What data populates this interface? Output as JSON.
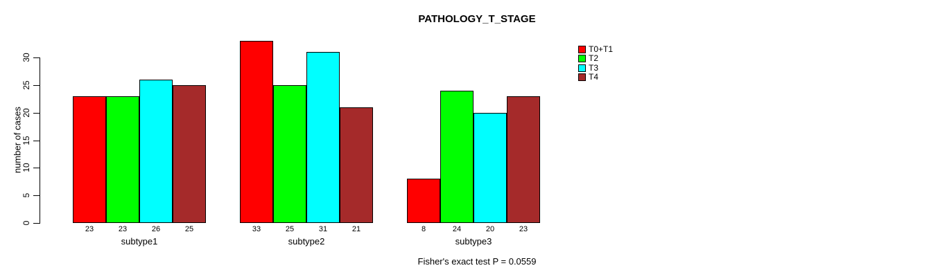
{
  "chart_data": {
    "type": "bar",
    "title": "PATHOLOGY_T_STAGE",
    "ylabel": "number of cases",
    "xlabel": "",
    "footer": "Fisher's exact test P = 0.0559",
    "categories": [
      "subtype1",
      "subtype2",
      "subtype3"
    ],
    "series": [
      {
        "name": "T0+T1",
        "color": "#FF0000",
        "values": [
          23,
          33,
          8
        ]
      },
      {
        "name": "T2",
        "color": "#00FF00",
        "values": [
          23,
          25,
          24
        ]
      },
      {
        "name": "T3",
        "color": "#00FFFF",
        "values": [
          26,
          31,
          20
        ]
      },
      {
        "name": "T4",
        "color": "#A52A2A",
        "values": [
          25,
          21,
          23
        ]
      }
    ],
    "bar_value_labels": [
      [
        23,
        23,
        26,
        25
      ],
      [
        33,
        25,
        31,
        21
      ],
      [
        8,
        24,
        20,
        23
      ]
    ],
    "yticks": [
      0,
      5,
      10,
      15,
      20,
      25,
      30
    ],
    "ylim": [
      0,
      33
    ],
    "grid": false,
    "legend_position": "top-right",
    "background_color": "#FFFFFF",
    "axis_color": "#000000",
    "text_color": "#000000"
  }
}
